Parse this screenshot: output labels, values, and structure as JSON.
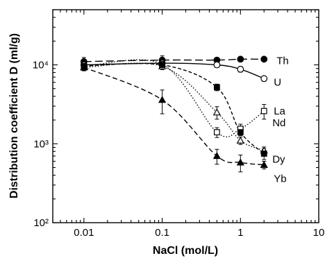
{
  "chart_data": {
    "type": "scatter",
    "title": "",
    "xlabel": "NaCl (mol/L)",
    "ylabel": "Distribution coefficient D (ml/g)",
    "x_scale": "log",
    "y_scale": "log",
    "xlim": [
      0.004,
      10
    ],
    "ylim": [
      100,
      50000
    ],
    "x_ticks": [
      0.01,
      0.1,
      1,
      10
    ],
    "x_tick_labels": [
      "0.01",
      "0.1",
      "1",
      "10"
    ],
    "y_ticks": [
      100,
      1000,
      10000
    ],
    "y_tick_labels": [
      "10²",
      "10³",
      "10⁴"
    ],
    "grid": false,
    "series": [
      {
        "name": "Th",
        "marker": "filled-circle",
        "line": "long-dash",
        "x": [
          0.01,
          0.1,
          0.5,
          1,
          2
        ],
        "y": [
          11000,
          11500,
          11500,
          11800,
          11800
        ],
        "err": [
          1400,
          1500,
          700,
          800,
          600
        ]
      },
      {
        "name": "U",
        "marker": "open-circle",
        "line": "solid",
        "x": [
          0.01,
          0.1,
          0.5,
          1,
          2
        ],
        "y": [
          10000,
          10500,
          10000,
          8800,
          6700
        ],
        "err": [
          1000,
          800,
          700,
          700,
          500
        ]
      },
      {
        "name": "La",
        "marker": "open-square",
        "line": "dotted",
        "x": [
          0.01,
          0.1,
          0.5,
          1,
          2
        ],
        "y": [
          9500,
          10200,
          1400,
          1550,
          2600
        ],
        "err": [
          900,
          1000,
          200,
          220,
          550
        ]
      },
      {
        "name": "Nd",
        "marker": "open-triangle",
        "line": "dotted",
        "x": [
          0.01,
          0.1,
          0.5,
          1,
          2
        ],
        "y": [
          9300,
          9600,
          2500,
          1100,
          820
        ],
        "err": [
          900,
          900,
          450,
          120,
          90
        ]
      },
      {
        "name": "Dy",
        "marker": "filled-square",
        "line": "short-dash",
        "x": [
          0.01,
          0.1,
          0.5,
          1,
          2
        ],
        "y": [
          9700,
          10000,
          5200,
          1400,
          750
        ],
        "err": [
          1000,
          1000,
          500,
          130,
          120
        ]
      },
      {
        "name": "Yb",
        "marker": "filled-triangle",
        "line": "medium-dash",
        "x": [
          0.01,
          0.1,
          0.5,
          1,
          2
        ],
        "y": [
          9300,
          3600,
          700,
          580,
          540
        ],
        "err": [
          800,
          1200,
          150,
          140,
          60
        ]
      }
    ]
  }
}
